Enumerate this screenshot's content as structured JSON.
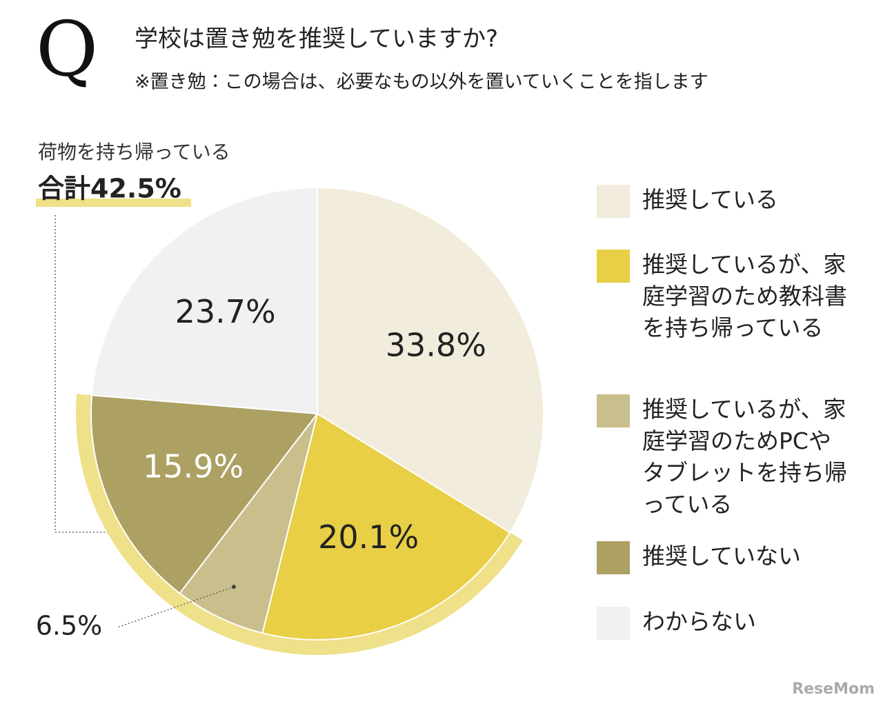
{
  "chart_data": {
    "type": "pie",
    "marker": "Q",
    "title": "学校は置き勉を推奨していますか?",
    "subtitle": "※置き勉：この場合は、必要なもの以外を置いていくことを指します",
    "annotation": {
      "text": "荷物を持ち帰っている",
      "total_label": "合計42.5%"
    },
    "categories": [
      "推奨している",
      "推奨しているが、家庭学習のため教科書を持ち帰っている",
      "推奨しているが、家庭学習のためPCやタブレットを持ち帰っている",
      "推奨していない",
      "わからない"
    ],
    "values": [
      33.8,
      20.1,
      6.5,
      15.9,
      23.7
    ],
    "value_labels": [
      "33.8%",
      "20.1%",
      "6.5%",
      "15.9%",
      "23.7%"
    ],
    "colors": [
      "#f1ecdb",
      "#e8cf45",
      "#c9bf8c",
      "#aca063",
      "#f1f1f1"
    ],
    "highlight_color": "#efe08a",
    "legend": "right",
    "watermark": "ReseMom"
  }
}
